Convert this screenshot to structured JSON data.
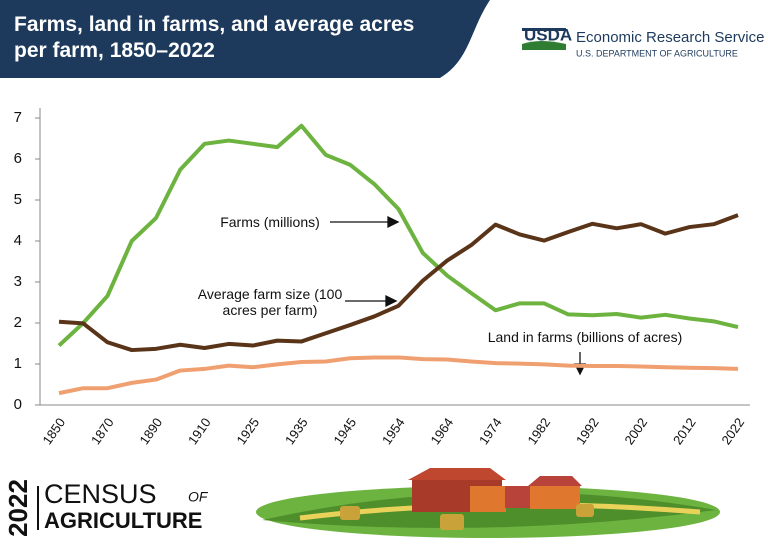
{
  "chart_data": {
    "type": "line",
    "title": "Farms, land in farms, and average acres per farm, 1850–2022",
    "categories": [
      "1850",
      null,
      "1870",
      null,
      "1890",
      null,
      "1910",
      null,
      "1925",
      null,
      "1935",
      null,
      "1945",
      null,
      "1954",
      null,
      "1964",
      null,
      "1974",
      null,
      "1982",
      null,
      "1992",
      null,
      "2002",
      null,
      "2012",
      null,
      "2022"
    ],
    "series": [
      {
        "name": "Farms (millions)",
        "color": "#6db33f",
        "values": [
          1.45,
          2.0,
          2.66,
          4.0,
          4.56,
          5.74,
          6.37,
          6.45,
          6.37,
          6.29,
          6.81,
          6.1,
          5.86,
          5.39,
          4.78,
          3.71,
          3.16,
          2.73,
          2.31,
          2.48,
          2.48,
          2.21,
          2.19,
          2.22,
          2.13,
          2.2,
          2.11,
          2.04,
          1.9
        ]
      },
      {
        "name": "Average farm size (100 acres per farm)",
        "color": "#5a3418",
        "values": [
          2.03,
          1.99,
          1.53,
          1.34,
          1.37,
          1.47,
          1.39,
          1.49,
          1.45,
          1.57,
          1.55,
          1.75,
          1.95,
          2.16,
          2.42,
          3.03,
          3.52,
          3.9,
          4.4,
          4.16,
          4.01,
          4.22,
          4.42,
          4.31,
          4.41,
          4.18,
          4.34,
          4.41,
          4.63
        ]
      },
      {
        "name": "Land in farms (billions of acres)",
        "color": "#f0a070",
        "values": [
          0.29,
          0.41,
          0.41,
          0.54,
          0.62,
          0.84,
          0.88,
          0.96,
          0.92,
          0.99,
          1.05,
          1.06,
          1.14,
          1.16,
          1.16,
          1.12,
          1.11,
          1.06,
          1.02,
          1.01,
          0.99,
          0.96,
          0.95,
          0.95,
          0.94,
          0.92,
          0.91,
          0.9,
          0.88
        ]
      }
    ],
    "ylim": [
      0,
      7
    ],
    "yticks": [
      0,
      1,
      2,
      3,
      4,
      5,
      6,
      7
    ]
  },
  "branding": {
    "logo": "USDA",
    "agency": "Economic Research Service",
    "department": "U.S. DEPARTMENT OF AGRICULTURE"
  },
  "footer": {
    "year": "2022",
    "census": "CENSUS",
    "of": "OF",
    "agriculture": "AGRICULTURE"
  }
}
